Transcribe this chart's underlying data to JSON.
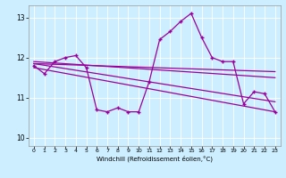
{
  "xlabel": "Windchill (Refroidissement éolien,°C)",
  "bg_color": "#cceeff",
  "line_color": "#990099",
  "grid_color": "#aaddcc",
  "xlim": [
    -0.5,
    23.5
  ],
  "ylim": [
    9.8,
    13.3
  ],
  "yticks": [
    10,
    11,
    12,
    13
  ],
  "xticks": [
    0,
    1,
    2,
    3,
    4,
    5,
    6,
    7,
    8,
    9,
    10,
    11,
    12,
    13,
    14,
    15,
    16,
    17,
    18,
    19,
    20,
    21,
    22,
    23
  ],
  "series1_x": [
    0,
    1,
    2,
    3,
    4,
    5,
    6,
    7,
    8,
    9,
    10,
    11,
    12,
    13,
    14,
    15,
    16,
    17,
    18,
    19,
    20,
    21,
    22,
    23
  ],
  "series1_y": [
    11.8,
    11.6,
    11.9,
    12.0,
    12.05,
    11.75,
    10.7,
    10.65,
    10.75,
    10.65,
    10.65,
    11.4,
    12.45,
    12.65,
    12.9,
    13.1,
    12.5,
    12.0,
    11.9,
    11.9,
    10.85,
    11.15,
    11.1,
    10.65
  ],
  "trend1_x": [
    0,
    23
  ],
  "trend1_y": [
    11.85,
    11.65
  ],
  "trend2_x": [
    0,
    23
  ],
  "trend2_y": [
    11.9,
    11.5
  ],
  "trend3_x": [
    0,
    23
  ],
  "trend3_y": [
    11.85,
    10.9
  ],
  "trend4_x": [
    0,
    23
  ],
  "trend4_y": [
    11.75,
    10.65
  ]
}
